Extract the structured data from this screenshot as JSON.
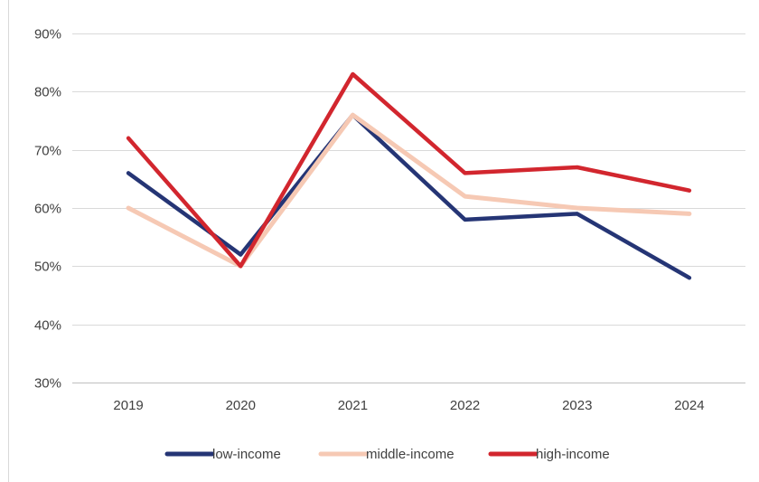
{
  "chart_data": {
    "type": "line",
    "title": "",
    "xlabel": "",
    "ylabel": "",
    "categories": [
      "2019",
      "2020",
      "2021",
      "2022",
      "2023",
      "2024"
    ],
    "ylim": [
      30,
      90
    ],
    "yticks": [
      "30%",
      "40%",
      "50%",
      "60%",
      "70%",
      "80%",
      "90%"
    ],
    "grid": "horizontal",
    "legend_position": "bottom",
    "series": [
      {
        "name": "low-income",
        "values": [
          66,
          52,
          76,
          58,
          59,
          48
        ],
        "color": "#253575"
      },
      {
        "name": "middle-income",
        "values": [
          60,
          50,
          76,
          62,
          60,
          59
        ],
        "color": "#f6c9b4"
      },
      {
        "name": "high-income",
        "values": [
          72,
          50,
          83,
          66,
          67,
          63
        ],
        "color": "#d2262e"
      }
    ]
  }
}
